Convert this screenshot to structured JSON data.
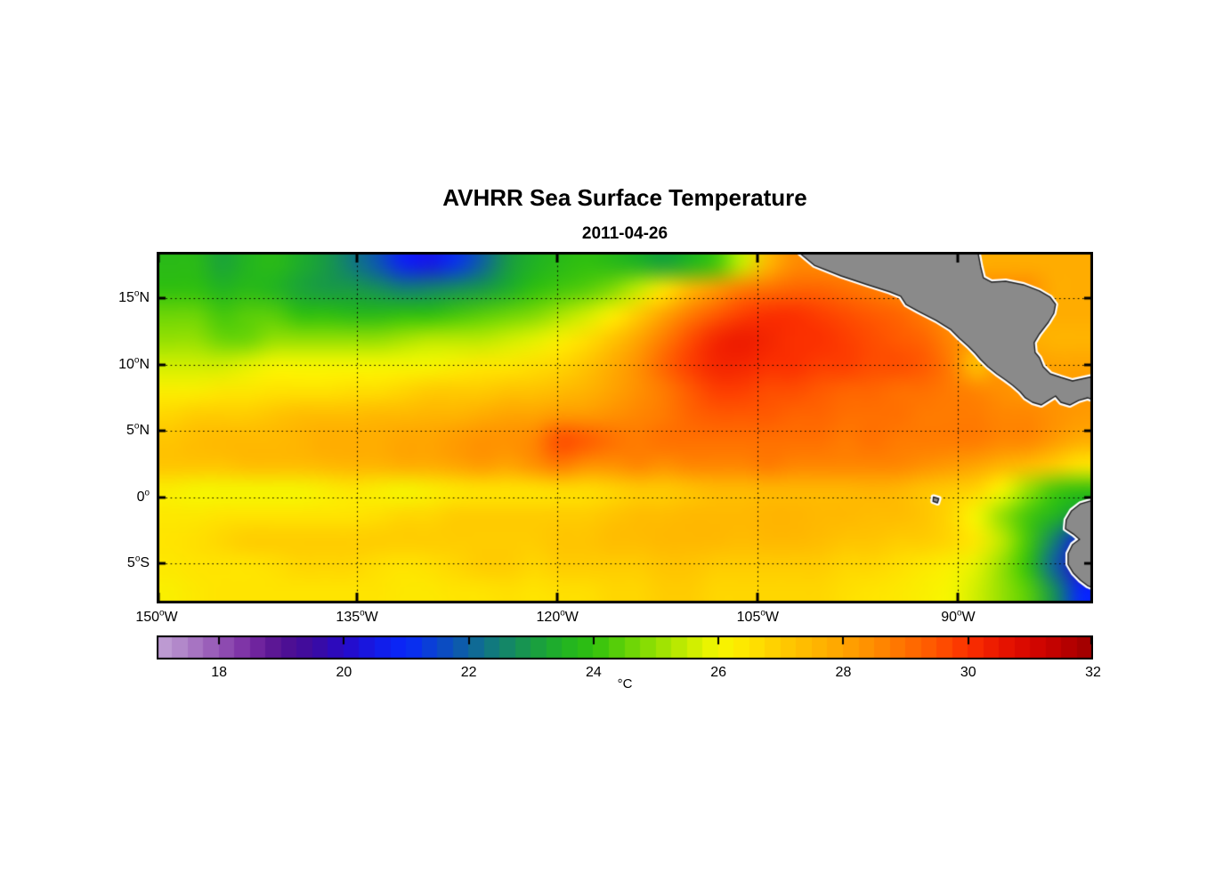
{
  "chart_data": {
    "type": "heatmap",
    "title": "AVHRR Sea Surface Temperature",
    "subtitle": "2011-04-26",
    "x_axis": {
      "range": [
        150,
        79.9
      ],
      "ticks": [
        150,
        135,
        120,
        105,
        90
      ],
      "suffix": "W"
    },
    "y_axis": {
      "range": [
        18.5,
        -8.0
      ],
      "ticks": [
        15,
        10,
        5,
        0,
        -5
      ],
      "tick_labels": [
        {
          "t": "15",
          "d": "N"
        },
        {
          "t": "10",
          "d": "N"
        },
        {
          "t": "5",
          "d": "N"
        },
        {
          "t": "0",
          "d": ""
        },
        {
          "t": "5",
          "d": "S"
        }
      ]
    },
    "colorbar": {
      "units": "°C",
      "range": [
        17,
        32
      ],
      "ticks": [
        18,
        20,
        22,
        24,
        26,
        28,
        30,
        32
      ],
      "segments": 60,
      "stops": [
        [
          17.0,
          "#c2a3d6"
        ],
        [
          17.5,
          "#ad7fc6"
        ],
        [
          18.0,
          "#9454b4"
        ],
        [
          18.5,
          "#782ba2"
        ],
        [
          19.0,
          "#531090"
        ],
        [
          19.5,
          "#3c0b9e"
        ],
        [
          20.0,
          "#2809c6"
        ],
        [
          20.5,
          "#141ae6"
        ],
        [
          21.0,
          "#0828fa"
        ],
        [
          21.5,
          "#0a45cd"
        ],
        [
          22.0,
          "#0e62a0"
        ],
        [
          22.5,
          "#128072"
        ],
        [
          23.0,
          "#189a46"
        ],
        [
          23.5,
          "#20b224"
        ],
        [
          24.0,
          "#30c00f"
        ],
        [
          24.5,
          "#62d207"
        ],
        [
          25.0,
          "#95e002"
        ],
        [
          25.5,
          "#c6ec00"
        ],
        [
          26.0,
          "#f6f600"
        ],
        [
          26.5,
          "#ffe400"
        ],
        [
          27.0,
          "#ffcc00"
        ],
        [
          27.5,
          "#ffb800"
        ],
        [
          28.0,
          "#ffa400"
        ],
        [
          28.5,
          "#ff8c00"
        ],
        [
          29.0,
          "#ff7000"
        ],
        [
          29.5,
          "#ff5400"
        ],
        [
          30.0,
          "#fb3000"
        ],
        [
          30.5,
          "#ea1600"
        ],
        [
          31.0,
          "#d60600"
        ],
        [
          31.5,
          "#bc0000"
        ],
        [
          32.0,
          "#9c0000"
        ]
      ]
    },
    "grid": {
      "cols": 36,
      "rows": 14,
      "lon_range": [
        150,
        79.9
      ],
      "lat_range": [
        18.5,
        -8.0
      ],
      "sst": [
        [
          23.8,
          23.8,
          23.2,
          23.6,
          23.8,
          23.4,
          23.0,
          22.4,
          21.8,
          20.8,
          20.5,
          21.2,
          22.0,
          23.0,
          23.5,
          23.8,
          24.0,
          23.8,
          23.5,
          23.2,
          23.6,
          24.2,
          25.5,
          27.5,
          28.5,
          28.5,
          28.5,
          28.5,
          28.5,
          28.5,
          28.0,
          27.8,
          27.8,
          27.8,
          27.8,
          27.8
        ],
        [
          24.0,
          24.0,
          23.6,
          23.8,
          23.6,
          23.2,
          23.0,
          23.0,
          22.8,
          22.5,
          22.6,
          22.8,
          23.0,
          23.4,
          24.0,
          24.2,
          24.4,
          24.8,
          25.5,
          26.5,
          27.5,
          28.2,
          28.8,
          29.0,
          29.2,
          29.2,
          29.0,
          28.8,
          28.6,
          28.5,
          28.5,
          28.5,
          28.5,
          28.5,
          27.8,
          27.8
        ],
        [
          24.6,
          24.6,
          24.2,
          24.4,
          24.4,
          24.0,
          24.0,
          23.8,
          23.8,
          24.0,
          24.0,
          24.2,
          24.4,
          24.6,
          24.8,
          25.2,
          25.6,
          26.2,
          27.0,
          28.0,
          28.8,
          29.4,
          29.8,
          30.0,
          30.0,
          29.8,
          29.6,
          29.4,
          29.2,
          28.8,
          28.4,
          28.0,
          28.0,
          27.8,
          27.8,
          27.8
        ],
        [
          25.0,
          25.0,
          24.6,
          24.6,
          25.0,
          25.0,
          25.0,
          25.0,
          25.0,
          25.2,
          25.4,
          25.4,
          25.4,
          25.6,
          25.8,
          26.2,
          26.6,
          27.2,
          28.0,
          28.8,
          29.6,
          30.2,
          30.4,
          30.2,
          30.0,
          30.0,
          29.8,
          29.6,
          29.4,
          29.2,
          28.6,
          28.2,
          28.0,
          27.8,
          27.6,
          27.6
        ],
        [
          25.6,
          25.6,
          25.6,
          25.8,
          26.0,
          26.0,
          26.0,
          26.0,
          26.0,
          26.0,
          26.0,
          26.2,
          26.4,
          26.4,
          26.6,
          26.8,
          27.2,
          27.8,
          28.4,
          29.2,
          29.8,
          30.2,
          30.2,
          30.0,
          30.0,
          29.8,
          29.8,
          29.6,
          29.6,
          29.4,
          28.8,
          27.2,
          28.4,
          28.2,
          28.0,
          28.0
        ],
        [
          26.2,
          26.2,
          26.4,
          26.4,
          26.5,
          26.5,
          26.5,
          26.6,
          26.6,
          26.8,
          27.0,
          27.0,
          27.0,
          27.2,
          27.2,
          27.4,
          27.6,
          28.0,
          28.4,
          28.8,
          29.4,
          29.8,
          29.8,
          29.6,
          29.6,
          29.4,
          29.2,
          29.2,
          29.0,
          29.0,
          28.8,
          28.6,
          28.4,
          28.2,
          28.2,
          28.2
        ],
        [
          26.8,
          27.0,
          27.0,
          27.0,
          27.2,
          27.4,
          27.4,
          27.4,
          27.5,
          27.5,
          27.6,
          27.6,
          27.8,
          28.0,
          28.0,
          28.2,
          28.2,
          28.4,
          28.6,
          28.8,
          29.2,
          29.4,
          29.4,
          29.4,
          29.2,
          29.2,
          29.0,
          29.0,
          29.0,
          28.8,
          28.8,
          28.8,
          28.6,
          28.6,
          28.4,
          28.2
        ],
        [
          27.2,
          27.4,
          27.5,
          27.5,
          27.5,
          27.6,
          27.8,
          27.8,
          27.8,
          28.0,
          28.0,
          28.2,
          28.4,
          28.4,
          28.6,
          29.6,
          29.4,
          29.0,
          28.8,
          29.0,
          29.0,
          29.0,
          29.0,
          29.0,
          29.0,
          29.0,
          28.8,
          29.0,
          28.8,
          28.8,
          28.8,
          28.8,
          28.6,
          28.6,
          28.2,
          27.8
        ],
        [
          27.2,
          27.2,
          27.2,
          27.4,
          27.4,
          27.4,
          27.5,
          27.6,
          27.6,
          27.8,
          27.8,
          28.0,
          28.2,
          28.0,
          28.4,
          28.8,
          28.4,
          28.4,
          28.6,
          28.4,
          28.6,
          28.6,
          28.6,
          28.8,
          28.6,
          28.6,
          28.6,
          28.6,
          28.6,
          28.4,
          28.2,
          28.0,
          27.6,
          27.4,
          27.0,
          26.5
        ],
        [
          26.2,
          26.0,
          26.0,
          26.0,
          26.0,
          26.0,
          26.2,
          26.4,
          26.2,
          26.0,
          26.2,
          26.4,
          26.5,
          26.5,
          26.5,
          26.6,
          26.6,
          26.8,
          27.0,
          27.0,
          27.2,
          27.4,
          27.4,
          27.5,
          27.5,
          27.5,
          27.5,
          27.6,
          27.5,
          27.2,
          27.0,
          26.8,
          26.0,
          25.0,
          24.2,
          24.0
        ],
        [
          26.4,
          26.4,
          26.5,
          26.5,
          26.5,
          26.5,
          26.5,
          26.5,
          26.6,
          26.8,
          26.8,
          27.0,
          27.0,
          27.0,
          27.0,
          27.0,
          27.0,
          27.2,
          27.4,
          27.4,
          27.5,
          27.5,
          27.5,
          27.6,
          27.6,
          27.5,
          27.5,
          27.4,
          27.4,
          27.2,
          26.8,
          26.0,
          25.0,
          24.2,
          23.6,
          23.0
        ],
        [
          26.5,
          26.6,
          26.8,
          27.0,
          27.0,
          27.0,
          27.0,
          27.0,
          27.0,
          27.0,
          27.0,
          27.0,
          27.0,
          27.0,
          27.0,
          27.2,
          27.2,
          27.4,
          27.4,
          27.5,
          27.5,
          27.5,
          27.4,
          27.5,
          27.5,
          27.4,
          27.2,
          27.2,
          27.0,
          27.0,
          26.8,
          26.4,
          25.4,
          24.2,
          22.5,
          20.5
        ],
        [
          26.4,
          26.5,
          26.5,
          26.5,
          26.6,
          26.8,
          26.8,
          26.8,
          26.6,
          26.5,
          26.6,
          26.8,
          27.0,
          27.0,
          26.8,
          27.0,
          27.0,
          27.0,
          27.0,
          27.2,
          27.2,
          27.0,
          27.0,
          27.0,
          27.0,
          27.0,
          26.8,
          26.8,
          26.6,
          26.4,
          26.2,
          25.8,
          25.0,
          24.0,
          22.0,
          20.0
        ],
        [
          26.2,
          26.4,
          26.5,
          26.5,
          26.5,
          26.5,
          26.5,
          26.5,
          26.5,
          26.4,
          26.4,
          26.5,
          26.5,
          26.6,
          26.5,
          26.6,
          26.6,
          26.8,
          26.8,
          27.0,
          27.0,
          26.8,
          26.8,
          26.8,
          26.8,
          26.8,
          26.6,
          26.5,
          26.4,
          26.2,
          26.0,
          25.6,
          25.0,
          24.4,
          22.8,
          21.0
        ]
      ]
    },
    "land": {
      "fill": "#8a8a8a",
      "halo": "#ffffff",
      "outline": "#1f1f1f",
      "polygons": {
        "central_america": [
          [
            102.0,
            18.9
          ],
          [
            101.97,
            18.5
          ],
          [
            100.77,
            17.49
          ],
          [
            98.77,
            16.69
          ],
          [
            96.77,
            16.02
          ],
          [
            95.1,
            15.48
          ],
          [
            94.3,
            15.15
          ],
          [
            93.9,
            14.54
          ],
          [
            92.97,
            14.01
          ],
          [
            91.64,
            13.33
          ],
          [
            90.57,
            12.66
          ],
          [
            89.91,
            11.99
          ],
          [
            89.24,
            11.39
          ],
          [
            88.71,
            10.85
          ],
          [
            88.31,
            10.38
          ],
          [
            87.77,
            9.85
          ],
          [
            87.11,
            9.31
          ],
          [
            86.44,
            8.84
          ],
          [
            85.91,
            8.44
          ],
          [
            85.37,
            7.97
          ],
          [
            84.97,
            7.5
          ],
          [
            84.44,
            7.16
          ],
          [
            83.77,
            6.96
          ],
          [
            83.24,
            7.3
          ],
          [
            82.71,
            7.63
          ],
          [
            82.31,
            7.16
          ],
          [
            81.64,
            6.96
          ],
          [
            80.97,
            7.3
          ],
          [
            80.31,
            7.5
          ],
          [
            79.5,
            7.2
          ],
          [
            79.5,
            9.2
          ],
          [
            81.44,
            8.77
          ],
          [
            82.31,
            9.04
          ],
          [
            83.11,
            9.31
          ],
          [
            83.64,
            9.85
          ],
          [
            83.91,
            10.52
          ],
          [
            84.24,
            10.92
          ],
          [
            84.31,
            11.66
          ],
          [
            83.91,
            12.33
          ],
          [
            83.24,
            13.2
          ],
          [
            82.84,
            13.87
          ],
          [
            82.71,
            14.54
          ],
          [
            83.11,
            15.08
          ],
          [
            83.91,
            15.55
          ],
          [
            85.11,
            16.02
          ],
          [
            86.44,
            16.29
          ],
          [
            87.51,
            16.22
          ],
          [
            88.11,
            16.55
          ],
          [
            88.31,
            17.36
          ],
          [
            88.6,
            18.9
          ]
        ],
        "south_america": [
          [
            79.5,
            -0.1
          ],
          [
            80.84,
            -0.49
          ],
          [
            81.51,
            -1.02
          ],
          [
            81.91,
            -1.7
          ],
          [
            81.97,
            -2.37
          ],
          [
            81.37,
            -2.77
          ],
          [
            80.91,
            -3.17
          ],
          [
            81.44,
            -3.57
          ],
          [
            81.77,
            -4.24
          ],
          [
            81.77,
            -5.05
          ],
          [
            81.37,
            -5.72
          ],
          [
            80.84,
            -6.26
          ],
          [
            80.31,
            -6.66
          ],
          [
            79.5,
            -7.0
          ]
        ],
        "galapagos": [
          [
            91.85,
            0.02
          ],
          [
            91.45,
            -0.1
          ],
          [
            91.55,
            -0.42
          ],
          [
            91.88,
            -0.3
          ]
        ]
      }
    },
    "style": {
      "frame_color": "#000000",
      "grid_color": "#000000",
      "text_color": "#000000"
    }
  }
}
